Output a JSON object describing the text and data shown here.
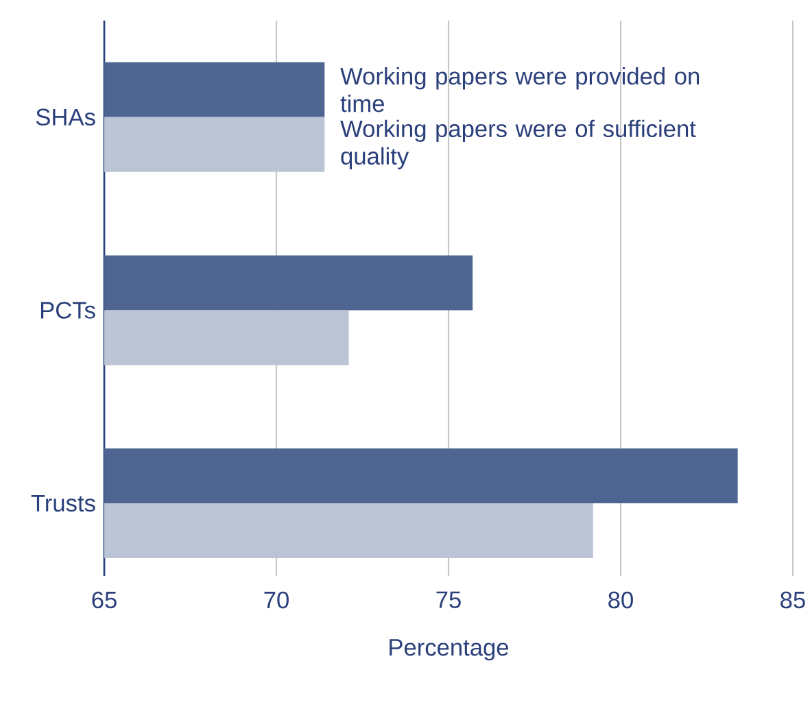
{
  "chart_data": {
    "type": "bar",
    "orientation": "horizontal",
    "xlabel": "Percentage",
    "categories": [
      "SHAs",
      "PCTs",
      "Trusts"
    ],
    "series": [
      {
        "name": "Working papers were provided on time",
        "color": "#4e6591",
        "values": [
          71.4,
          75.7,
          83.4
        ]
      },
      {
        "name": "Working papers were of sufficient quality",
        "color": "#bac4d5",
        "values": [
          71.4,
          72.1,
          79.2
        ]
      }
    ],
    "xlim": [
      65,
      85
    ],
    "xticks": [
      65,
      70,
      75,
      80,
      85
    ],
    "grid": "x"
  }
}
